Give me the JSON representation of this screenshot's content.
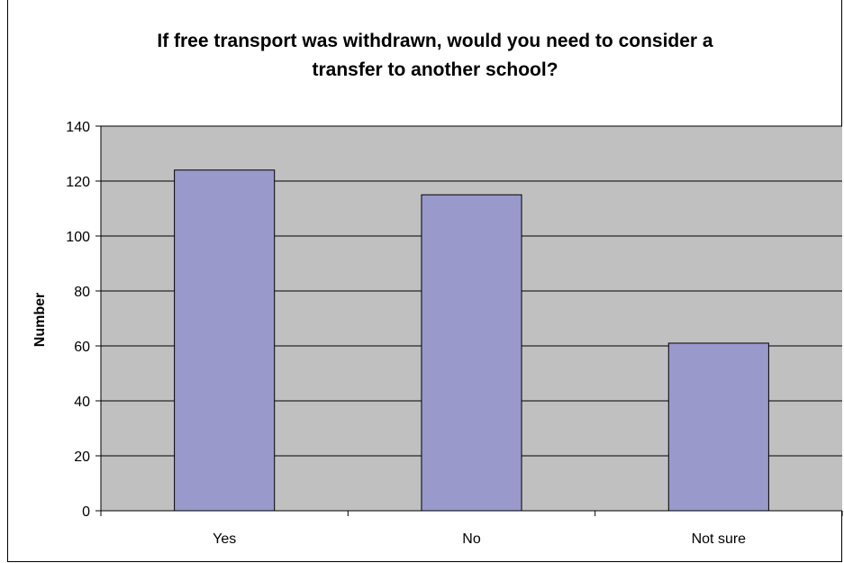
{
  "chart_data": {
    "type": "bar",
    "title_lines": [
      "If free transport was withdrawn, would you need to consider a",
      "transfer to another school?"
    ],
    "xlabel": "",
    "ylabel": "Number",
    "categories": [
      "Yes",
      "No",
      "Not sure"
    ],
    "values": [
      124,
      115,
      61
    ],
    "ylim": [
      0,
      140
    ],
    "yticks": [
      "0",
      "20",
      "40",
      "60",
      "80",
      "100",
      "120",
      "140"
    ],
    "grid": true,
    "legend": "none",
    "colors": {
      "bar": "#9999cc",
      "plot_bg": "#c0c0c0",
      "bar_edge": "#000000",
      "grid": "#000000"
    }
  }
}
